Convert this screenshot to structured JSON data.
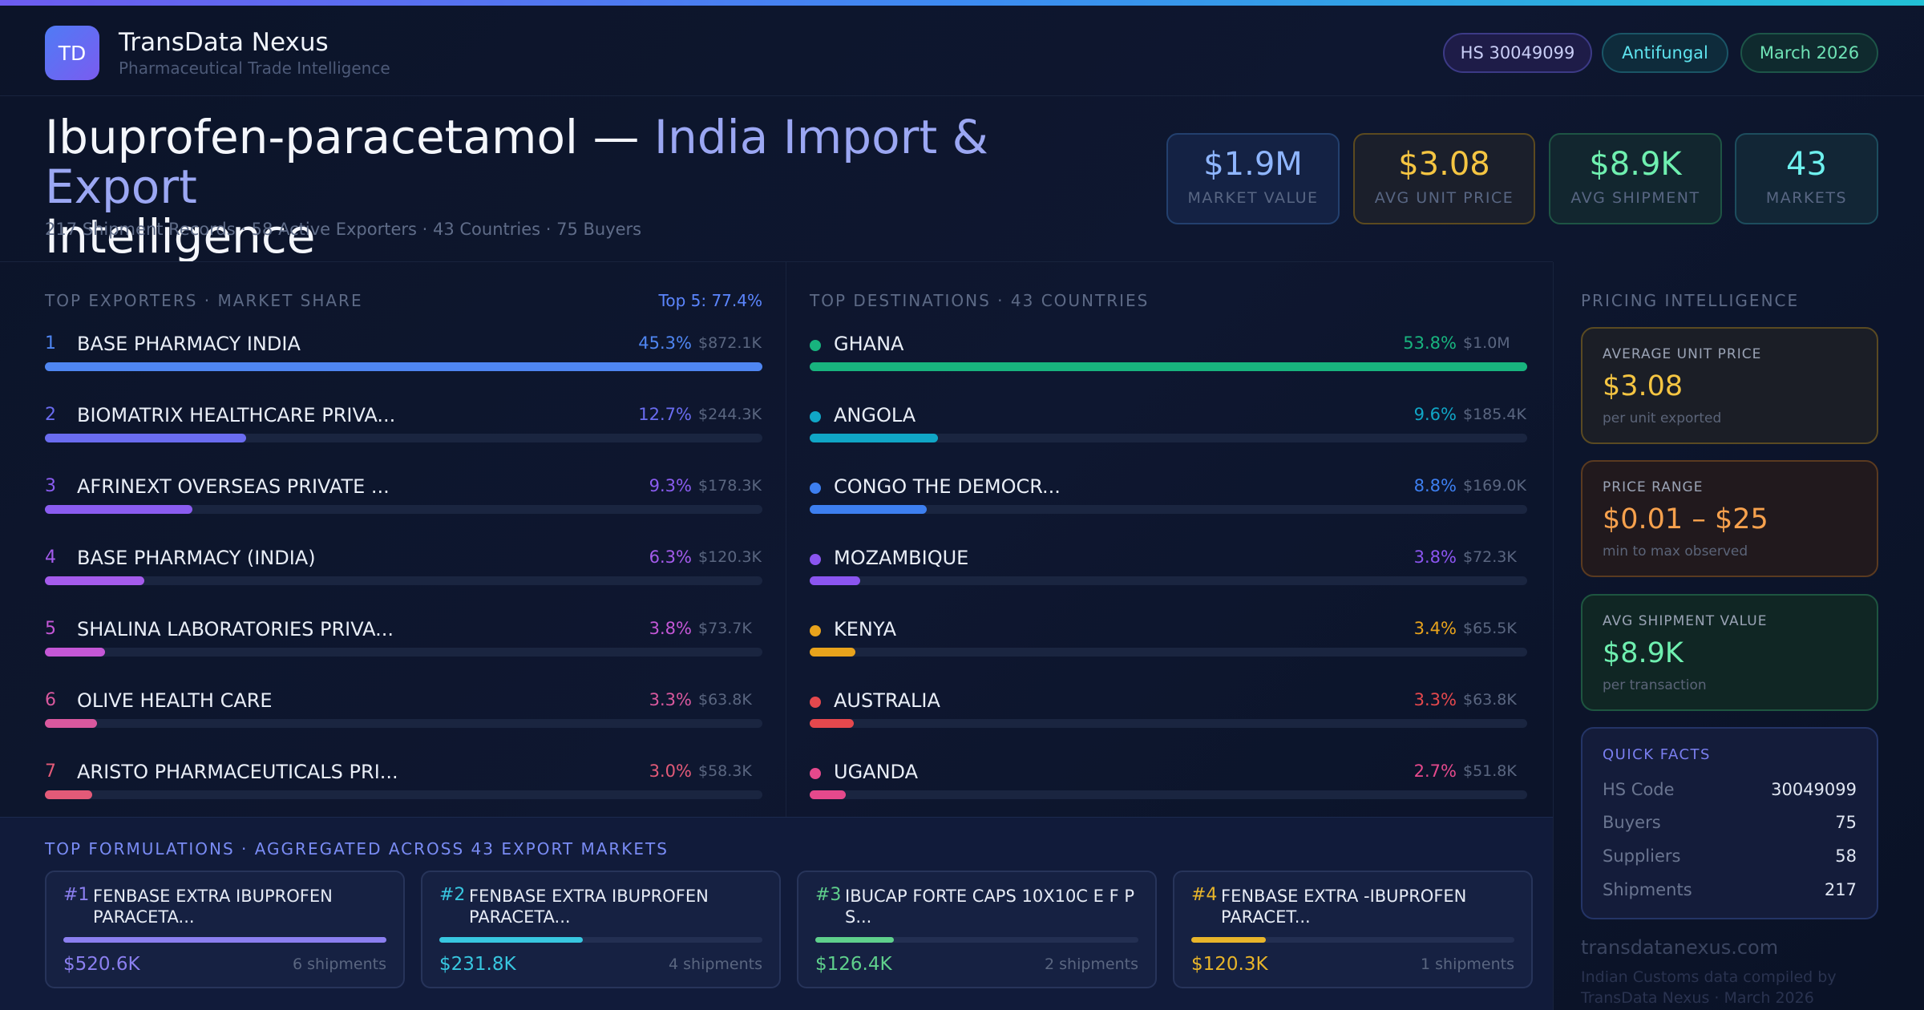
{
  "colors": {
    "accent_indigo": "#9ba7f3",
    "gold": "#f5c542",
    "green": "#6ff0b0",
    "cyan": "#6ef0ee",
    "orange": "#f7a14d"
  },
  "header": {
    "logo_text": "TD",
    "brand_name": "TransData Nexus",
    "brand_tagline": "Pharmaceutical Trade Intelligence",
    "pills": {
      "hs": "HS 30049099",
      "category": "Antifungal",
      "date": "March 2026"
    }
  },
  "hero": {
    "title_main": "Ibuprofen-paracetamol — ",
    "title_accent": "India Import & Export",
    "title_tail": "Intelligence",
    "subtitle": "217 Shipment Records · 58 Active Exporters · 43 Countries · 75 Buyers"
  },
  "kpis": [
    {
      "value": "$1.9M",
      "label": "MARKET VALUE"
    },
    {
      "value": "$3.08",
      "label": "AVG UNIT PRICE"
    },
    {
      "value": "$8.9K",
      "label": "AVG SHIPMENT"
    },
    {
      "value": "43",
      "label": "MARKETS"
    }
  ],
  "exporters": {
    "title": "TOP EXPORTERS · MARKET SHARE",
    "top5": "Top 5: 77.4%",
    "items": [
      {
        "rank": "1",
        "name": "BASE PHARMACY INDIA",
        "pct": "45.3%",
        "amount": "$872.1K",
        "share": 45.3,
        "color": "#4f86f2"
      },
      {
        "rank": "2",
        "name": "BIOMATRIX HEALTHCARE PRIVA...",
        "pct": "12.7%",
        "amount": "$244.3K",
        "share": 12.7,
        "color": "#6a6cf0"
      },
      {
        "rank": "3",
        "name": "AFRINEXT OVERSEAS PRIVATE ...",
        "pct": "9.3%",
        "amount": "$178.3K",
        "share": 9.3,
        "color": "#8a5cf0"
      },
      {
        "rank": "4",
        "name": "BASE PHARMACY (INDIA)",
        "pct": "6.3%",
        "amount": "$120.3K",
        "share": 6.3,
        "color": "#a45bec"
      },
      {
        "rank": "5",
        "name": "SHALINA LABORATORIES PRIVA...",
        "pct": "3.8%",
        "amount": "$73.7K",
        "share": 3.8,
        "color": "#c457d6"
      },
      {
        "rank": "6",
        "name": "OLIVE HEALTH CARE",
        "pct": "3.3%",
        "amount": "$63.8K",
        "share": 3.3,
        "color": "#d9589e"
      },
      {
        "rank": "7",
        "name": "ARISTO PHARMACEUTICALS PRI...",
        "pct": "3.0%",
        "amount": "$58.3K",
        "share": 3.0,
        "color": "#e35a78"
      }
    ]
  },
  "destinations": {
    "title": "TOP DESTINATIONS · 43 COUNTRIES",
    "items": [
      {
        "name": "GHANA",
        "pct": "53.8%",
        "amount": "$1.0M",
        "share": 53.8,
        "color": "#18b47e"
      },
      {
        "name": "ANGOLA",
        "pct": "9.6%",
        "amount": "$185.4K",
        "share": 9.6,
        "color": "#10a6c6"
      },
      {
        "name": "CONGO THE DEMOCR...",
        "pct": "8.8%",
        "amount": "$169.0K",
        "share": 8.8,
        "color": "#3d7ff0"
      },
      {
        "name": "MOZAMBIQUE",
        "pct": "3.8%",
        "amount": "$72.3K",
        "share": 3.8,
        "color": "#8b55f0"
      },
      {
        "name": "KENYA",
        "pct": "3.4%",
        "amount": "$65.5K",
        "share": 3.4,
        "color": "#e8a31c"
      },
      {
        "name": "AUSTRALIA",
        "pct": "3.3%",
        "amount": "$63.8K",
        "share": 3.3,
        "color": "#e5484d"
      },
      {
        "name": "UGANDA",
        "pct": "2.7%",
        "amount": "$51.8K",
        "share": 2.7,
        "color": "#e5498c"
      }
    ]
  },
  "pricing": {
    "title": "PRICING INTELLIGENCE",
    "avg_unit": {
      "label": "AVERAGE UNIT PRICE",
      "value": "$3.08",
      "sub": "per unit exported"
    },
    "range": {
      "label": "PRICE RANGE",
      "value": "$0.01 – $25",
      "sub": "min to max observed"
    },
    "avg_shipment": {
      "label": "AVG SHIPMENT VALUE",
      "value": "$8.9K",
      "sub": "per transaction"
    }
  },
  "quick_facts": {
    "title": "QUICK FACTS",
    "rows": [
      {
        "label": "HS Code",
        "value": "30049099"
      },
      {
        "label": "Buyers",
        "value": "75"
      },
      {
        "label": "Suppliers",
        "value": "58"
      },
      {
        "label": "Shipments",
        "value": "217"
      }
    ]
  },
  "footer": {
    "site": "transdatanexus.com",
    "note": "Indian Customs data compiled by TransData Nexus · March 2026"
  },
  "formulations": {
    "title": "TOP FORMULATIONS · AGGREGATED ACROSS 43 EXPORT MARKETS",
    "items": [
      {
        "num": "#1",
        "name": "FENBASE EXTRA IBUPROFEN PARACETA...",
        "value": "$520.6K",
        "shipments": "6 shipments",
        "share": 1.0,
        "color": "#8b7ff0"
      },
      {
        "num": "#2",
        "name": "FENBASE EXTRA IBUPROFEN PARACETA...",
        "value": "$231.8K",
        "shipments": "4 shipments",
        "share": 0.445,
        "color": "#38c7e0"
      },
      {
        "num": "#3",
        "name": "IBUCAP FORTE CAPS 10X10C E F P S...",
        "value": "$126.4K",
        "shipments": "2 shipments",
        "share": 0.243,
        "color": "#5fd08c"
      },
      {
        "num": "#4",
        "name": "FENBASE EXTRA -IBUPROFEN PARACET...",
        "value": "$120.3K",
        "shipments": "1 shipments",
        "share": 0.231,
        "color": "#e8b52a"
      }
    ]
  }
}
